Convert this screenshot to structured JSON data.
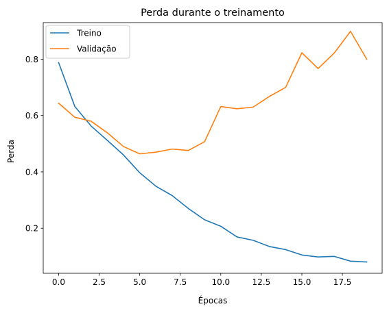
{
  "chart_data": {
    "type": "line",
    "title": "Perda durante o treinamento",
    "xlabel": "Épocas",
    "ylabel": "Perda",
    "xlim": [
      -0.95,
      19.95
    ],
    "ylim": [
      0.04,
      0.93
    ],
    "xticks": [
      0.0,
      2.5,
      5.0,
      7.5,
      10.0,
      12.5,
      15.0,
      17.5
    ],
    "xtick_labels": [
      "0.0",
      "2.5",
      "5.0",
      "7.5",
      "10.0",
      "12.5",
      "15.0",
      "17.5"
    ],
    "yticks": [
      0.2,
      0.4,
      0.6,
      0.8
    ],
    "ytick_labels": [
      "0.2",
      "0.4",
      "0.6",
      "0.8"
    ],
    "grid": false,
    "legend_position": "top-left",
    "x": [
      0,
      1,
      2,
      3,
      4,
      5,
      6,
      7,
      8,
      9,
      10,
      11,
      12,
      13,
      14,
      15,
      16,
      17,
      18,
      19
    ],
    "series": [
      {
        "name": "Treino",
        "color": "#1f77b4",
        "values": [
          0.788,
          0.632,
          0.563,
          0.512,
          0.46,
          0.397,
          0.349,
          0.316,
          0.27,
          0.23,
          0.207,
          0.169,
          0.157,
          0.135,
          0.124,
          0.105,
          0.098,
          0.1,
          0.083,
          0.08
        ]
      },
      {
        "name": "Validação",
        "color": "#ff7f0e",
        "values": [
          0.644,
          0.594,
          0.58,
          0.539,
          0.49,
          0.464,
          0.47,
          0.481,
          0.476,
          0.507,
          0.632,
          0.624,
          0.63,
          0.668,
          0.7,
          0.823,
          0.767,
          0.822,
          0.899,
          0.8
        ]
      }
    ]
  }
}
